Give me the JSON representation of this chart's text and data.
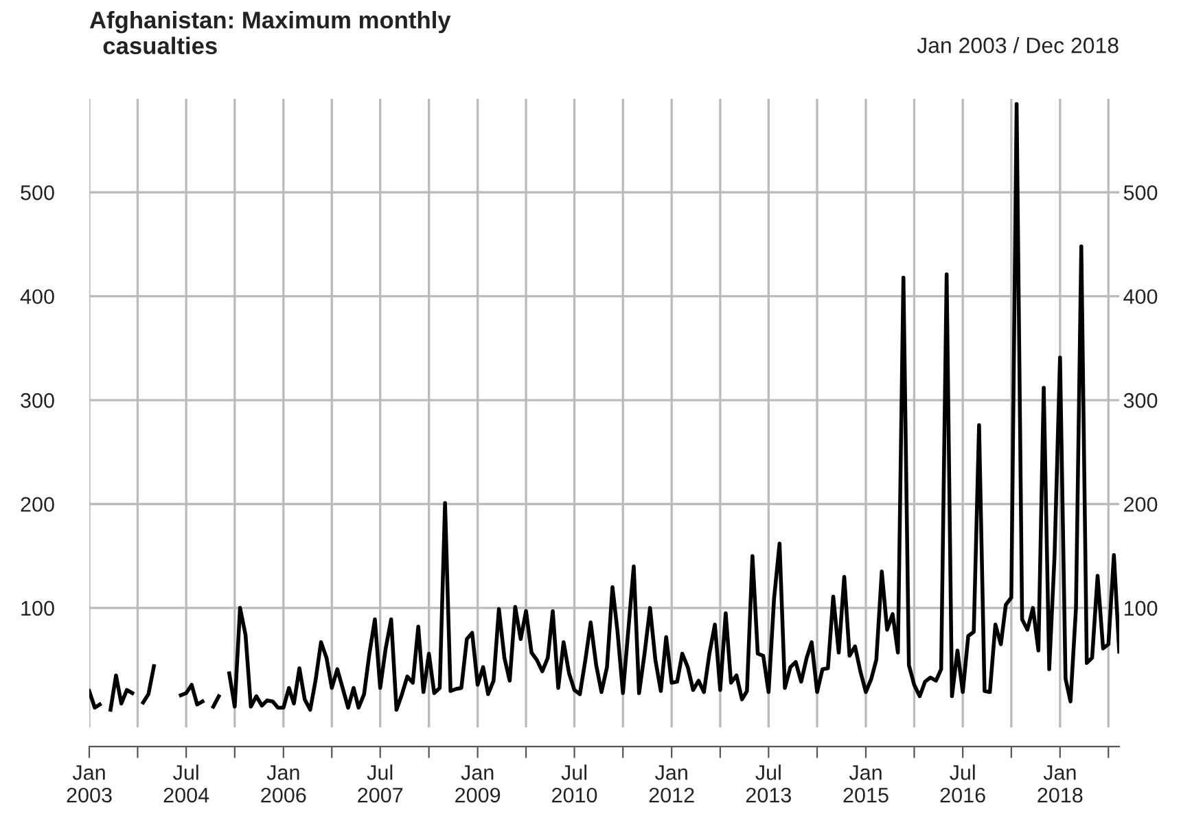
{
  "chart_data": {
    "type": "line",
    "title": "Afghanistan: Maximum monthly\n  casualties",
    "subtitle": "Jan 2003 / Dec 2018",
    "x": [
      "2003-01",
      "2003-02",
      "2003-03",
      "2003-04",
      "2003-05",
      "2003-06",
      "2003-07",
      "2003-08",
      "2003-09",
      "2003-10",
      "2003-11",
      "2003-12",
      "2004-01",
      "2004-02",
      "2004-03",
      "2004-04",
      "2004-05",
      "2004-06",
      "2004-07",
      "2004-08",
      "2004-09",
      "2004-10",
      "2004-11",
      "2004-12",
      "2005-01",
      "2005-02",
      "2005-03",
      "2005-04",
      "2005-05",
      "2005-06",
      "2005-07",
      "2005-08",
      "2005-09",
      "2005-10",
      "2005-11",
      "2005-12",
      "2006-01",
      "2006-02",
      "2006-03",
      "2006-04",
      "2006-05",
      "2006-06",
      "2006-07",
      "2006-08",
      "2006-09",
      "2006-10",
      "2006-11",
      "2006-12",
      "2007-01",
      "2007-02",
      "2007-03",
      "2007-04",
      "2007-05",
      "2007-06",
      "2007-07",
      "2007-08",
      "2007-09",
      "2007-10",
      "2007-11",
      "2007-12",
      "2008-01",
      "2008-02",
      "2008-03",
      "2008-04",
      "2008-05",
      "2008-06",
      "2008-07",
      "2008-08",
      "2008-09",
      "2008-10",
      "2008-11",
      "2008-12",
      "2009-01",
      "2009-02",
      "2009-03",
      "2009-04",
      "2009-05",
      "2009-06",
      "2009-07",
      "2009-08",
      "2009-09",
      "2009-10",
      "2009-11",
      "2009-12",
      "2010-01",
      "2010-02",
      "2010-03",
      "2010-04",
      "2010-05",
      "2010-06",
      "2010-07",
      "2010-08",
      "2010-09",
      "2010-10",
      "2010-11",
      "2010-12",
      "2011-01",
      "2011-02",
      "2011-03",
      "2011-04",
      "2011-05",
      "2011-06",
      "2011-07",
      "2011-08",
      "2011-09",
      "2011-10",
      "2011-11",
      "2011-12",
      "2012-01",
      "2012-02",
      "2012-03",
      "2012-04",
      "2012-05",
      "2012-06",
      "2012-07",
      "2012-08",
      "2012-09",
      "2012-10",
      "2012-11",
      "2012-12",
      "2013-01",
      "2013-02",
      "2013-03",
      "2013-04",
      "2013-05",
      "2013-06",
      "2013-07",
      "2013-08",
      "2013-09",
      "2013-10",
      "2013-11",
      "2013-12",
      "2014-01",
      "2014-02",
      "2014-03",
      "2014-04",
      "2014-05",
      "2014-06",
      "2014-07",
      "2014-08",
      "2014-09",
      "2014-10",
      "2014-11",
      "2014-12",
      "2015-01",
      "2015-02",
      "2015-03",
      "2015-04",
      "2015-05",
      "2015-06",
      "2015-07",
      "2015-08",
      "2015-09",
      "2015-10",
      "2015-11",
      "2015-12",
      "2016-01",
      "2016-02",
      "2016-03",
      "2016-04",
      "2016-05",
      "2016-06",
      "2016-07",
      "2016-08",
      "2016-09",
      "2016-10",
      "2016-11",
      "2016-12",
      "2017-01",
      "2017-02",
      "2017-03",
      "2017-04",
      "2017-05",
      "2017-06",
      "2017-07",
      "2017-08",
      "2017-09",
      "2017-10",
      "2017-11",
      "2017-12",
      "2018-01",
      "2018-02",
      "2018-03",
      "2018-04",
      "2018-05",
      "2018-06",
      "2018-07",
      "2018-08",
      "2018-09",
      "2018-10",
      "2018-11",
      "2018-12"
    ],
    "series": [
      {
        "color": "#000000",
        "values": [
          20,
          4,
          7,
          null,
          2,
          35,
          8,
          21,
          18,
          null,
          9,
          17,
          44,
          null,
          null,
          null,
          null,
          16,
          18,
          26,
          7,
          10,
          null,
          5,
          15,
          null,
          37,
          5,
          100,
          74,
          5,
          15,
          6,
          11,
          10,
          4,
          4,
          23,
          8,
          42,
          12,
          2,
          30,
          67,
          52,
          23,
          41,
          23,
          4,
          23,
          4,
          17,
          56,
          89,
          23,
          61,
          89,
          2,
          17,
          34,
          28,
          82,
          19,
          56,
          18,
          23,
          201,
          20,
          22,
          23,
          70,
          76,
          26,
          43,
          17,
          30,
          99,
          52,
          30,
          101,
          70,
          97,
          57,
          50,
          39,
          52,
          97,
          23,
          67,
          37,
          21,
          17,
          50,
          86,
          45,
          19,
          43,
          120,
          78,
          18,
          78,
          140,
          18,
          56,
          100,
          50,
          20,
          72,
          28,
          29,
          56,
          43,
          21,
          30,
          19,
          56,
          84,
          21,
          95,
          28,
          35,
          12,
          20,
          150,
          56,
          54,
          19,
          109,
          162,
          23,
          43,
          48,
          29,
          52,
          67,
          19,
          41,
          42,
          111,
          57,
          130,
          54,
          63,
          39,
          19,
          32,
          50,
          135,
          79,
          94,
          57,
          418,
          45,
          26,
          15,
          29,
          33,
          30,
          41,
          421,
          15,
          59,
          19,
          73,
          77,
          276,
          20,
          19,
          84,
          65,
          103,
          110,
          585,
          89,
          79,
          100,
          59,
          312,
          41,
          150,
          341,
          32,
          10,
          100,
          448,
          47,
          52,
          131,
          61,
          65,
          151,
          58
        ]
      }
    ],
    "xlim": [
      "2003-01",
      "2018-12"
    ],
    "xticks": [
      {
        "value": "2003-01",
        "label": "Jan\n2003"
      },
      {
        "value": "2003-10",
        "label": null
      },
      {
        "value": "2004-07",
        "label": "Jul\n2004"
      },
      {
        "value": "2005-04",
        "label": null
      },
      {
        "value": "2006-01",
        "label": "Jan\n2006"
      },
      {
        "value": "2006-10",
        "label": null
      },
      {
        "value": "2007-07",
        "label": "Jul\n2007"
      },
      {
        "value": "2008-04",
        "label": null
      },
      {
        "value": "2009-01",
        "label": "Jan\n2009"
      },
      {
        "value": "2009-10",
        "label": null
      },
      {
        "value": "2010-07",
        "label": "Jul\n2010"
      },
      {
        "value": "2011-04",
        "label": null
      },
      {
        "value": "2012-01",
        "label": "Jan\n2012"
      },
      {
        "value": "2012-10",
        "label": null
      },
      {
        "value": "2013-07",
        "label": "Jul\n2013"
      },
      {
        "value": "2014-04",
        "label": null
      },
      {
        "value": "2015-01",
        "label": "Jan\n2015"
      },
      {
        "value": "2015-10",
        "label": null
      },
      {
        "value": "2016-07",
        "label": "Jul\n2016"
      },
      {
        "value": "2017-04",
        "label": null
      },
      {
        "value": "2018-01",
        "label": "Jan\n2018"
      },
      {
        "value": "2018-10",
        "label": null
      }
    ],
    "ylim": [
      -15,
      590
    ],
    "yticks": [
      100,
      200,
      300,
      400,
      500
    ],
    "y2lim": [
      -15,
      590
    ],
    "y2ticks": [
      100,
      200,
      300,
      400,
      500
    ],
    "grid": true,
    "line_style": "solid",
    "marker": "none"
  }
}
